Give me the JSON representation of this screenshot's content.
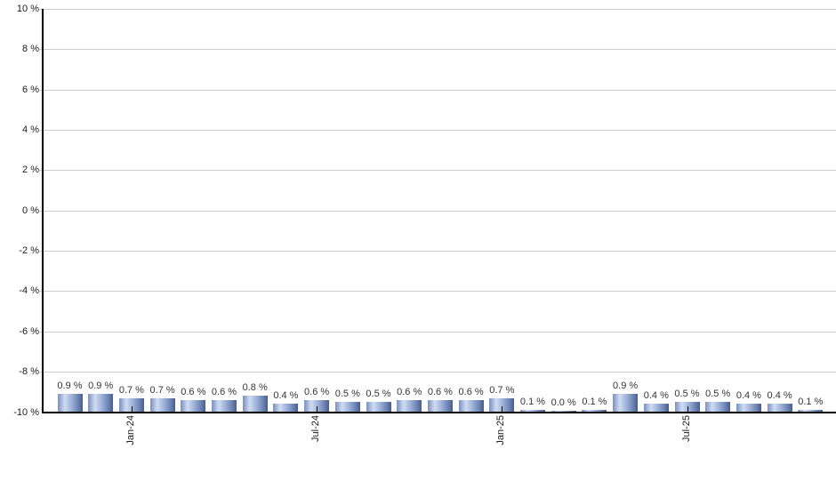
{
  "chart_data": {
    "type": "bar",
    "title": "",
    "xlabel": "",
    "ylabel": "",
    "ylim": [
      -10,
      10
    ],
    "grid": true,
    "legend": false,
    "values": [
      0.9,
      0.9,
      0.7,
      0.7,
      0.6,
      0.6,
      0.8,
      0.4,
      0.6,
      0.5,
      0.5,
      0.6,
      0.6,
      0.6,
      0.7,
      0.1,
      0.0,
      0.1,
      0.9,
      0.4,
      0.5,
      0.5,
      0.4,
      0.4,
      0.1
    ],
    "bar_labels": [
      "0.9 %",
      "0.9 %",
      "0.7 %",
      "0.7 %",
      "0.6 %",
      "0.6 %",
      "0.8 %",
      "0.4 %",
      "0.6 %",
      "0.5 %",
      "0.5 %",
      "0.6 %",
      "0.6 %",
      "0.6 %",
      "0.7 %",
      "0.1 %",
      "0.0 %",
      "0.1 %",
      "0.9 %",
      "0.4 %",
      "0.5 %",
      "0.5 %",
      "0.4 %",
      "0.4 %",
      "0.1 %"
    ],
    "y_ticks_pct": [
      10,
      8,
      6,
      4,
      2,
      0,
      -2,
      -4,
      -6,
      -8,
      -10
    ],
    "y_tick_labels": [
      "10 %",
      "8 %",
      "6 %",
      "4 %",
      "2 %",
      "0 %",
      "-2 %",
      "-4 %",
      "-6 %",
      "-8 %",
      "-10 %"
    ],
    "x_ticks": [
      {
        "bar_index": 2,
        "label": "Jan-24"
      },
      {
        "bar_index": 8,
        "label": "Jul-24"
      },
      {
        "bar_index": 14,
        "label": "Jan-25"
      },
      {
        "bar_index": 20,
        "label": "Jul-25"
      }
    ],
    "colors": {
      "bar_gradient_stops": [
        [
          "#7890be",
          "0%"
        ],
        [
          "#d0dcf2",
          "28%"
        ],
        [
          "#9db1d8",
          "55%"
        ],
        [
          "#6e86b6",
          "80%"
        ],
        [
          "#4a5c8c",
          "100%"
        ]
      ],
      "gridline": "#cccccc",
      "axis": "#000000",
      "value_label_text": "#333333",
      "tick_label_text": "#1a1a1a",
      "background": "#ffffff"
    }
  }
}
